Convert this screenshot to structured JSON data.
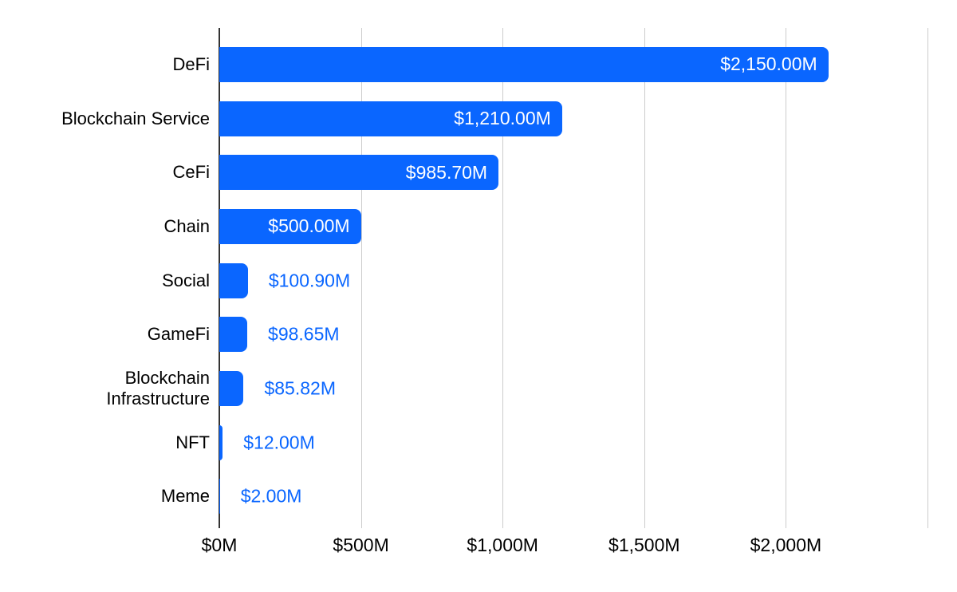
{
  "chart_data": {
    "type": "bar",
    "orientation": "horizontal",
    "title": "",
    "xlabel": "",
    "ylabel": "",
    "categories": [
      "DeFi",
      "Blockchain Service",
      "CeFi",
      "Chain",
      "Social",
      "GameFi",
      "Blockchain Infrastructure",
      "NFT",
      "Meme"
    ],
    "values": [
      2150,
      1210,
      985.7,
      500,
      100.9,
      98.65,
      85.82,
      12,
      2
    ],
    "value_labels": [
      "$2,150.00M",
      "$1,210.00M",
      "$985.70M",
      "$500.00M",
      "$100.90M",
      "$98.65M",
      "$85.82M",
      "$12.00M",
      "$2.00M"
    ],
    "xlim": [
      0,
      2500
    ],
    "x_ticks": [
      {
        "value": 0,
        "label": "$0M"
      },
      {
        "value": 500,
        "label": "$500M"
      },
      {
        "value": 1000,
        "label": "$1,000M"
      },
      {
        "value": 1500,
        "label": "$1,500M"
      },
      {
        "value": 2000,
        "label": "$2,000M"
      },
      {
        "value": 2500,
        "label": ""
      }
    ],
    "grid": "vertical",
    "legend": "none"
  },
  "colors": {
    "bar": "#0A66FF",
    "value_label_outside": "#0A66FF",
    "value_label_inside": "#FFFFFF",
    "category_label": "#000000",
    "axis_label": "#000000",
    "gridline": "#CCCCCC",
    "axis_line": "#333333",
    "background": "#FFFFFF"
  }
}
